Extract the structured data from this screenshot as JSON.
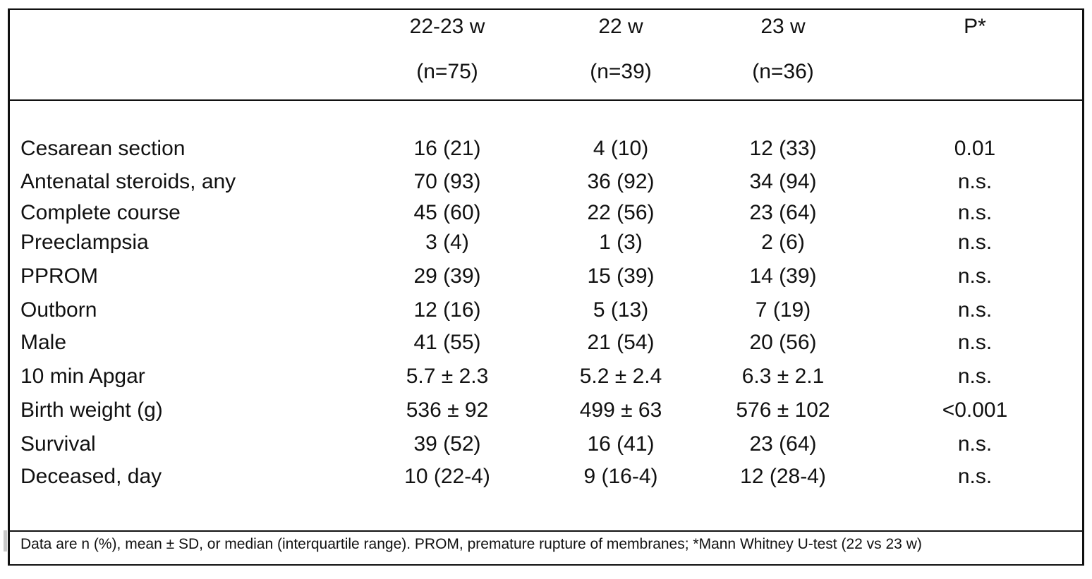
{
  "table": {
    "headers": [
      {
        "line1": "22-23 w",
        "line2": "(n=75)"
      },
      {
        "line1": "22 w",
        "line2": "(n=39)"
      },
      {
        "line1": "23 w",
        "line2": "(n=36)"
      },
      {
        "line1": "P*",
        "line2": ""
      }
    ],
    "rows": [
      {
        "label": "Cesarean section",
        "values": [
          "16 (21)",
          "4 (10)",
          "12 (33)",
          "0.01"
        ]
      },
      {
        "label": "Antenatal steroids, any",
        "values": [
          "70 (93)",
          "36 (92)",
          "34 (94)",
          "n.s."
        ]
      },
      {
        "label": "Complete course",
        "values": [
          "45 (60)",
          "22 (56)",
          "23 (64)",
          "n.s."
        ]
      },
      {
        "label": "Preeclampsia",
        "values": [
          "3 (4)",
          "1 (3)",
          "2 (6)",
          "n.s."
        ]
      },
      {
        "label": "PPROM",
        "values": [
          "29 (39)",
          "15 (39)",
          "14 (39)",
          "n.s."
        ]
      },
      {
        "label": "Outborn",
        "values": [
          "12 (16)",
          "5 (13)",
          "7 (19)",
          "n.s."
        ]
      },
      {
        "label": "Male",
        "values": [
          "41 (55)",
          "21 (54)",
          "20 (56)",
          "n.s."
        ]
      },
      {
        "label": "10 min Apgar",
        "values": [
          "5.7 ± 2.3",
          "5.2 ± 2.4",
          "6.3 ± 2.1",
          "n.s."
        ]
      },
      {
        "label": "Birth weight (g)",
        "values": [
          "536 ± 92",
          "499 ± 63",
          "576 ± 102",
          "<0.001"
        ]
      },
      {
        "label": "Survival",
        "values": [
          "39 (52)",
          "16 (41)",
          "23 (64)",
          "n.s."
        ]
      },
      {
        "label": "Deceased, day",
        "values": [
          "10 (22-4)",
          "9 (16-4)",
          "12 (28-4)",
          "n.s."
        ]
      }
    ],
    "footnote": "Data are n (%), mean ± SD, or median (interquartile range). PROM, premature rupture of membranes; *Mann Whitney U-test (22 vs 23 w)"
  }
}
